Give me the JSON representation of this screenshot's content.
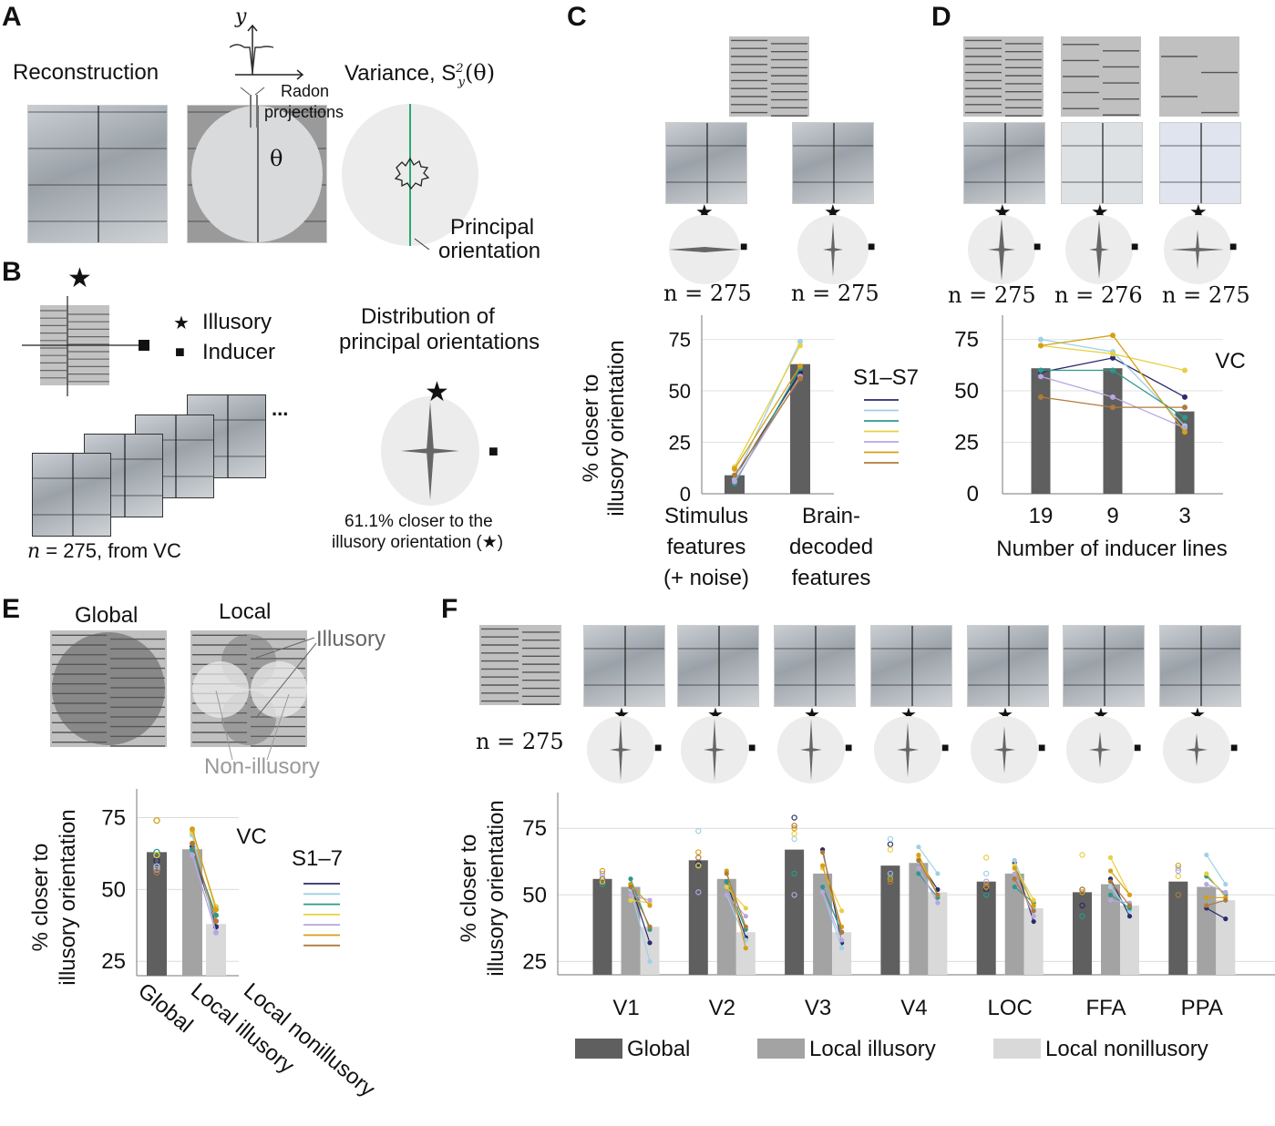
{
  "panels": {
    "A": {
      "label": "A",
      "reconstruction_label": "Reconstruction",
      "axis_y_label": "y",
      "radon_label_1": "Radon",
      "radon_label_2": "projections",
      "theta_label": "θ",
      "variance_label": "Variance, S",
      "variance_sup": "2",
      "variance_sub": "y",
      "variance_arg": "(θ)",
      "principal_label_1": "Principal",
      "principal_label_2": "orientation"
    },
    "B": {
      "label": "B",
      "legend_illusory": "Illusory",
      "legend_inducer": "Inducer",
      "dist_title_1": "Distribution of",
      "dist_title_2": "principal orientations",
      "n_label": "n",
      "n_text": "= 275, from VC",
      "caption_1": "61.1% closer to the",
      "caption_2": "illusory orientation (★)",
      "ellipsis": "..."
    },
    "C": {
      "label": "C",
      "n_labels": [
        "n = 275",
        "n = 275"
      ]
    },
    "D": {
      "label": "D",
      "n_labels": [
        "n = 275",
        "n = 276",
        "n = 275"
      ]
    },
    "E": {
      "label": "E",
      "global_label": "Global",
      "local_label": "Local",
      "illusory_label": "Illusory",
      "nonillusory_label": "Non-illusory"
    },
    "F": {
      "label": "F",
      "n_label": "n = 275"
    }
  },
  "symbols": {
    "star": "★",
    "square": "■"
  },
  "colors": {
    "global": "#5f5f5f",
    "local_illusory": "#a3a3a3",
    "local_nonillusory": "#d9d9d9",
    "subjects": [
      "#2b2a6b",
      "#9fd0e6",
      "#2a9a8a",
      "#e8d040",
      "#b9a6e0",
      "#d4a017",
      "#b07a3a"
    ]
  },
  "chart_data": [
    {
      "id": "C",
      "type": "bar",
      "title": "",
      "ylabel": "% closer to illusory orientation",
      "xlabel": "",
      "categories": [
        "Stimulus features (+ noise)",
        "Brain-decoded features"
      ],
      "category_lines": [
        [
          "Stimulus",
          "features",
          "(+ noise)"
        ],
        [
          "Brain-",
          "decoded",
          "features"
        ]
      ],
      "values": [
        9,
        63
      ],
      "ylim": [
        0,
        85
      ],
      "yticks": [
        0,
        25,
        50,
        75
      ],
      "grid": true,
      "legend": {
        "title": "S1–S7",
        "position": "right"
      },
      "subjects": [
        {
          "name": "S1",
          "values": [
            8,
            59
          ]
        },
        {
          "name": "S2",
          "values": [
            7,
            74
          ]
        },
        {
          "name": "S3",
          "values": [
            5,
            61
          ]
        },
        {
          "name": "S4",
          "values": [
            13,
            72
          ]
        },
        {
          "name": "S5",
          "values": [
            6,
            57
          ]
        },
        {
          "name": "S6",
          "values": [
            12,
            62
          ]
        },
        {
          "name": "S7",
          "values": [
            9,
            56
          ]
        }
      ]
    },
    {
      "id": "D",
      "type": "bar",
      "title": "",
      "ylabel": "",
      "xlabel": "Number of inducer lines",
      "categories": [
        "19",
        "9",
        "3"
      ],
      "values": [
        61,
        61,
        40
      ],
      "ylim": [
        0,
        85
      ],
      "yticks": [
        0,
        25,
        50,
        75
      ],
      "grid": true,
      "annotation": "VC",
      "subjects": [
        {
          "name": "S1",
          "values": [
            59,
            66,
            47
          ]
        },
        {
          "name": "S2",
          "values": [
            75,
            69,
            33
          ]
        },
        {
          "name": "S3",
          "values": [
            60,
            60,
            37
          ]
        },
        {
          "name": "S4",
          "values": [
            72,
            68,
            60
          ]
        },
        {
          "name": "S5",
          "values": [
            57,
            47,
            32
          ]
        },
        {
          "name": "S6",
          "values": [
            72,
            77,
            30
          ]
        },
        {
          "name": "S7",
          "values": [
            47,
            42,
            42
          ]
        }
      ]
    },
    {
      "id": "E",
      "type": "bar",
      "title": "",
      "ylabel": "% closer to illusory orientation",
      "categories": [
        "Global",
        "Local illusory",
        "Local nonillusory"
      ],
      "values": [
        63,
        64,
        38
      ],
      "ylim": [
        20,
        85
      ],
      "yticks": [
        25,
        50,
        75
      ],
      "grid": true,
      "annotation": "VC",
      "legend": {
        "title": "S1–7",
        "position": "right"
      },
      "subjects": [
        {
          "name": "S1",
          "values": [
            60,
            65,
            37
          ]
        },
        {
          "name": "S2",
          "values": [
            58,
            69,
            35
          ]
        },
        {
          "name": "S3",
          "values": [
            63,
            64,
            41
          ]
        },
        {
          "name": "S4",
          "values": [
            62,
            70,
            44
          ]
        },
        {
          "name": "S5",
          "values": [
            57,
            62,
            35
          ]
        },
        {
          "name": "S6",
          "values": [
            74,
            71,
            43
          ]
        },
        {
          "name": "S7",
          "values": [
            56,
            66,
            39
          ]
        }
      ]
    },
    {
      "id": "F",
      "type": "bar",
      "title": "",
      "ylabel": "% closer to illusory orientation",
      "categories": [
        "V1",
        "V2",
        "V3",
        "V4",
        "LOC",
        "FFA",
        "PPA"
      ],
      "series": [
        {
          "name": "Global",
          "values": [
            56,
            63,
            67,
            61,
            55,
            51,
            55
          ]
        },
        {
          "name": "Local illusory",
          "values": [
            53,
            56,
            58,
            62,
            58,
            54,
            53
          ]
        },
        {
          "name": "Local nonillusory",
          "values": [
            38,
            36,
            36,
            51,
            45,
            46,
            48
          ]
        }
      ],
      "ylim": [
        20,
        85
      ],
      "yticks": [
        25,
        50,
        75
      ],
      "grid": true,
      "legend": {
        "position": "bottom"
      },
      "subjects": [
        {
          "name": "S1",
          "global": [
            55,
            62,
            79,
            69,
            52,
            46,
            50
          ],
          "illusory": [
            54,
            55,
            67,
            63,
            62,
            56,
            45
          ],
          "nonillusory": [
            32,
            34,
            32,
            52,
            40,
            42,
            41
          ]
        },
        {
          "name": "S2",
          "global": [
            57,
            74,
            71,
            71,
            58,
            52,
            60
          ],
          "illusory": [
            52,
            50,
            51,
            68,
            63,
            53,
            65
          ],
          "nonillusory": [
            25,
            33,
            30,
            58,
            45,
            44,
            54
          ]
        },
        {
          "name": "S3",
          "global": [
            54,
            61,
            58,
            57,
            50,
            42,
            50
          ],
          "illusory": [
            56,
            55,
            53,
            58,
            53,
            50,
            57
          ],
          "nonillusory": [
            37,
            37,
            36,
            49,
            47,
            45,
            50
          ]
        },
        {
          "name": "S4",
          "global": [
            55,
            61,
            73,
            67,
            64,
            65,
            57
          ],
          "illusory": [
            48,
            53,
            60,
            64,
            61,
            64,
            58
          ],
          "nonillusory": [
            47,
            45,
            44,
            50,
            48,
            50,
            49
          ]
        },
        {
          "name": "S5",
          "global": [
            58,
            51,
            50,
            58,
            55,
            52,
            59
          ],
          "illusory": [
            50,
            50,
            51,
            60,
            58,
            48,
            54
          ],
          "nonillusory": [
            48,
            42,
            33,
            47,
            42,
            47,
            51
          ]
        },
        {
          "name": "S6",
          "global": [
            59,
            66,
            75,
            56,
            53,
            51,
            61
          ],
          "illusory": [
            54,
            59,
            61,
            65,
            60,
            59,
            49
          ],
          "nonillusory": [
            46,
            30,
            38,
            50,
            46,
            50,
            49
          ]
        },
        {
          "name": "S7",
          "global": [
            56,
            64,
            76,
            55,
            54,
            52,
            50
          ],
          "illusory": [
            53,
            58,
            66,
            63,
            56,
            55,
            46
          ],
          "nonillusory": [
            38,
            38,
            36,
            50,
            44,
            46,
            48
          ]
        }
      ]
    }
  ]
}
